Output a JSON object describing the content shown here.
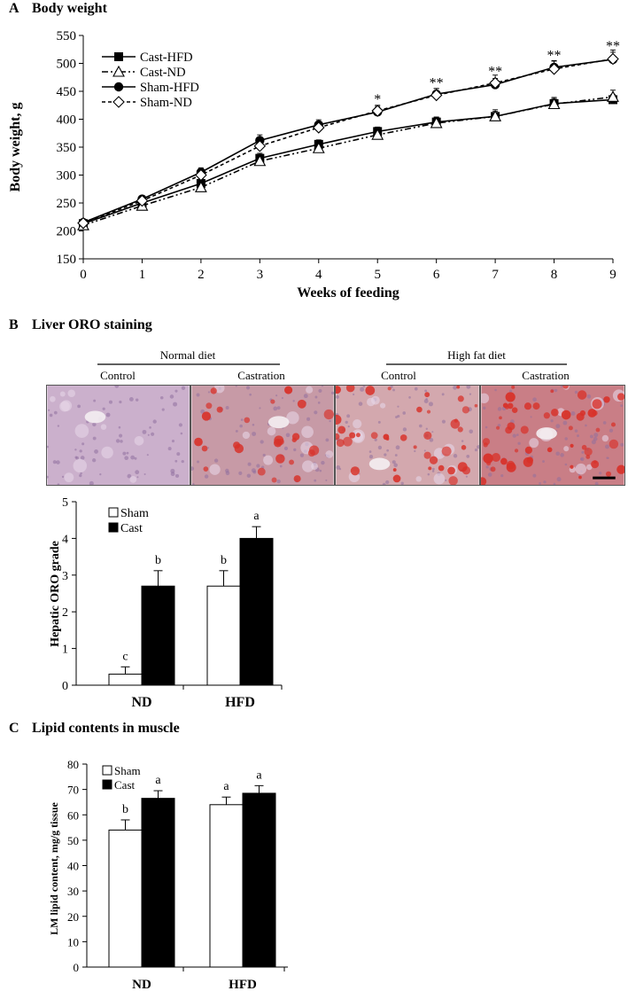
{
  "panels": {
    "a": {
      "letter": "A",
      "title": "Body weight"
    },
    "b": {
      "letter": "B",
      "title": "Liver ORO staining"
    },
    "c": {
      "letter": "C",
      "title": "Lipid contents in muscle"
    }
  },
  "histology": {
    "diet_headers": [
      "Normal diet",
      "High fat diet"
    ],
    "column_labels": [
      "Control",
      "Castration",
      "Control",
      "Castration"
    ],
    "colors": {
      "tissue": "#c9a7c8",
      "lipid": "#d8322a",
      "vessel": "#f4eef2"
    }
  },
  "chart_data": [
    {
      "id": "body-weight",
      "type": "line",
      "xlabel": "Weeks of feeding",
      "ylabel": "Body weight, g",
      "xlim": [
        0,
        9
      ],
      "ylim": [
        150,
        550
      ],
      "xticks": [
        0,
        1,
        2,
        3,
        4,
        5,
        6,
        7,
        8,
        9
      ],
      "yticks": [
        150,
        200,
        250,
        300,
        350,
        400,
        450,
        500,
        550
      ],
      "legend_position": "top-left",
      "x": [
        0,
        1,
        2,
        3,
        4,
        5,
        6,
        7,
        8,
        9
      ],
      "series": [
        {
          "name": "Cast-HFD",
          "marker": "filled-square",
          "dash": "solid",
          "values": [
            213,
            250,
            285,
            330,
            355,
            378,
            395,
            405,
            428,
            435
          ],
          "errors": [
            5,
            6,
            8,
            9,
            8,
            8,
            9,
            9,
            9,
            9
          ]
        },
        {
          "name": "Cast-ND",
          "marker": "open-triangle",
          "dash": "dash-dot-dot",
          "values": [
            210,
            245,
            278,
            325,
            348,
            372,
            393,
            405,
            427,
            440
          ],
          "errors": [
            5,
            6,
            8,
            8,
            9,
            10,
            10,
            12,
            12,
            12
          ]
        },
        {
          "name": "Sham-HFD",
          "marker": "filled-circle",
          "dash": "solid",
          "values": [
            215,
            257,
            305,
            362,
            390,
            413,
            445,
            462,
            493,
            507
          ],
          "errors": [
            5,
            6,
            8,
            10,
            9,
            10,
            10,
            11,
            12,
            13
          ]
        },
        {
          "name": "Sham-ND",
          "marker": "open-diamond",
          "dash": "dashed",
          "values": [
            214,
            254,
            300,
            352,
            385,
            415,
            443,
            465,
            490,
            508
          ],
          "errors": [
            5,
            6,
            8,
            9,
            9,
            10,
            12,
            14,
            14,
            16
          ]
        }
      ],
      "annotations": [
        {
          "x": 5,
          "y": 428,
          "text": "*"
        },
        {
          "x": 6,
          "y": 457,
          "text": "**"
        },
        {
          "x": 7,
          "y": 478,
          "text": "**"
        },
        {
          "x": 8,
          "y": 506,
          "text": "**"
        },
        {
          "x": 9,
          "y": 523,
          "text": "**"
        }
      ]
    },
    {
      "id": "hepatic-oro",
      "type": "bar",
      "ylabel": "Hepatic ORO grade",
      "ylim": [
        0,
        5
      ],
      "yticks": [
        0,
        1,
        2,
        3,
        4,
        5
      ],
      "categories": [
        "ND",
        "HFD"
      ],
      "legend_position": "top-left",
      "series": [
        {
          "name": "Sham",
          "fill": "#ffffff",
          "values": [
            0.3,
            2.7
          ],
          "errors": [
            0.2,
            0.42
          ],
          "letters": [
            "c",
            "b"
          ]
        },
        {
          "name": "Cast",
          "fill": "#000000",
          "values": [
            2.7,
            4.0
          ],
          "errors": [
            0.42,
            0.32
          ],
          "letters": [
            "b",
            "a"
          ]
        }
      ]
    },
    {
      "id": "muscle-lipid",
      "type": "bar",
      "ylabel": "LM lipid content, mg/g tissue",
      "ylim": [
        0,
        80
      ],
      "yticks": [
        0,
        10,
        20,
        30,
        40,
        50,
        60,
        70,
        80
      ],
      "categories": [
        "ND",
        "HFD"
      ],
      "legend_position": "top-left",
      "series": [
        {
          "name": "Sham",
          "fill": "#ffffff",
          "values": [
            54,
            64
          ],
          "errors": [
            4,
            3
          ],
          "letters": [
            "b",
            "a"
          ]
        },
        {
          "name": "Cast",
          "fill": "#000000",
          "values": [
            66.5,
            68.5
          ],
          "errors": [
            3,
            3
          ],
          "letters": [
            "a",
            "a"
          ]
        }
      ]
    }
  ]
}
